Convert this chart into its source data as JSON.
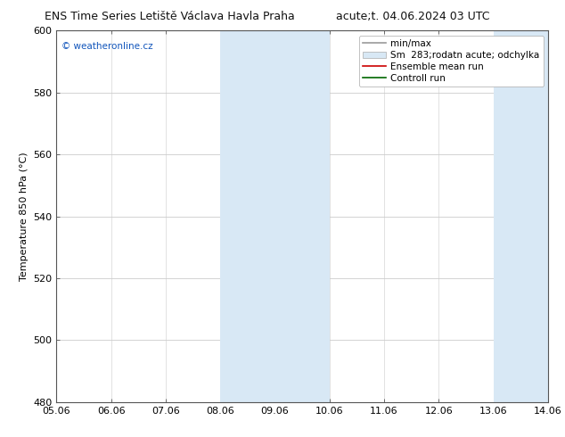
{
  "title_left": "ENS Time Series Letiště Václava Havla Praha",
  "title_right": "acute;t. 04.06.2024 03 UTC",
  "ylabel": "Temperature 850 hPa (°C)",
  "xlabel_ticks": [
    "05.06",
    "06.06",
    "07.06",
    "08.06",
    "09.06",
    "10.06",
    "11.06",
    "12.06",
    "13.06",
    "14.06"
  ],
  "ylim": [
    480,
    600
  ],
  "yticks": [
    480,
    500,
    520,
    540,
    560,
    580,
    600
  ],
  "background_color": "#ffffff",
  "plot_bg_color": "#ffffff",
  "shaded_bands": [
    {
      "xstart": 3,
      "xend": 5,
      "color": "#d8e8f5"
    },
    {
      "xstart": 8,
      "xend": 9,
      "color": "#d8e8f5"
    }
  ],
  "watermark_text": "© weatheronline.cz",
  "watermark_color": "#1155bb",
  "grid_color": "#cccccc",
  "title_fontsize": 9,
  "tick_fontsize": 8,
  "ylabel_fontsize": 8,
  "legend_fontsize": 7.5,
  "spine_color": "#555555"
}
